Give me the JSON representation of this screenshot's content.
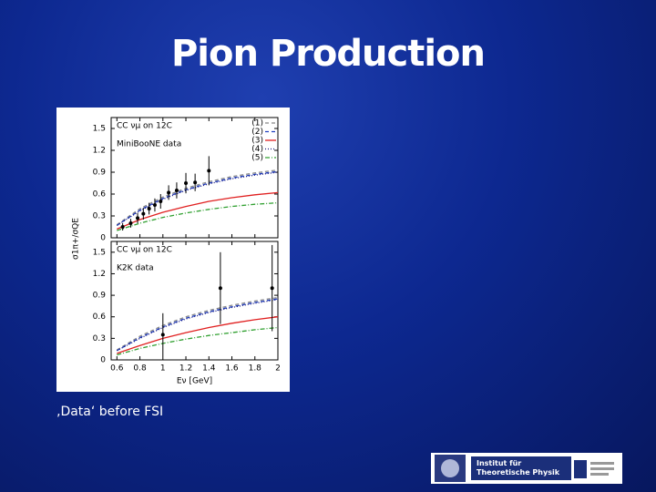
{
  "title": "Pion Production",
  "caption": "‚Data‘ before FSI",
  "logo": {
    "institute": "Institut für Theoretische Physik"
  },
  "chart_data": [
    {
      "type": "line",
      "ylabel": "σ1π+/σQE",
      "annotation": "CC νμ on 12C",
      "xlim": [
        0.55,
        2
      ],
      "xticks": [
        0.6,
        0.8,
        1,
        1.2,
        1.4,
        1.6,
        1.8,
        2
      ],
      "ylim": [
        0,
        1.65
      ],
      "yticks": [
        0,
        0.3,
        0.6,
        0.9,
        1.2,
        1.5
      ],
      "x": [
        0.6,
        0.8,
        1.0,
        1.2,
        1.4,
        1.6,
        1.8,
        2.0
      ],
      "series": [
        {
          "name": "(1)",
          "color": "#888888",
          "style": "dashed",
          "values": [
            0.18,
            0.4,
            0.56,
            0.68,
            0.77,
            0.84,
            0.89,
            0.93
          ]
        },
        {
          "name": "(2)",
          "color": "#2040c0",
          "style": "dashed",
          "values": [
            0.17,
            0.38,
            0.54,
            0.66,
            0.75,
            0.82,
            0.87,
            0.91
          ]
        },
        {
          "name": "(3)",
          "color": "#e02020",
          "style": "solid",
          "values": [
            0.12,
            0.25,
            0.35,
            0.43,
            0.5,
            0.55,
            0.59,
            0.62
          ]
        },
        {
          "name": "(4)",
          "color": "#1a1a80",
          "style": "dotted",
          "values": [
            0.17,
            0.37,
            0.53,
            0.65,
            0.74,
            0.81,
            0.86,
            0.9
          ]
        },
        {
          "name": "(5)",
          "color": "#30a030",
          "style": "dashdot",
          "values": [
            0.1,
            0.2,
            0.28,
            0.34,
            0.39,
            0.43,
            0.46,
            0.48
          ]
        }
      ],
      "data": {
        "name": "MiniBooNE data",
        "color": "#000000",
        "x": [
          0.65,
          0.72,
          0.78,
          0.83,
          0.88,
          0.93,
          0.98,
          1.05,
          1.12,
          1.2,
          1.28,
          1.4
        ],
        "values": [
          0.15,
          0.2,
          0.27,
          0.33,
          0.4,
          0.45,
          0.5,
          0.62,
          0.65,
          0.75,
          0.76,
          0.92
        ],
        "errors": [
          0.05,
          0.06,
          0.07,
          0.08,
          0.08,
          0.09,
          0.1,
          0.1,
          0.11,
          0.14,
          0.12,
          0.2
        ]
      }
    },
    {
      "type": "line",
      "xlabel": "Eν [GeV]",
      "annotation": "CC νμ on 12C",
      "xlim": [
        0.55,
        2
      ],
      "xticks": [
        0.6,
        0.8,
        1,
        1.2,
        1.4,
        1.6,
        1.8,
        2
      ],
      "ylim": [
        0,
        1.65
      ],
      "yticks": [
        0,
        0.3,
        0.6,
        0.9,
        1.2,
        1.5
      ],
      "x": [
        0.6,
        0.8,
        1.0,
        1.2,
        1.4,
        1.6,
        1.8,
        2.0
      ],
      "series": [
        {
          "color": "#888888",
          "style": "dashed",
          "values": [
            0.14,
            0.33,
            0.48,
            0.6,
            0.69,
            0.76,
            0.82,
            0.87
          ]
        },
        {
          "color": "#2040c0",
          "style": "dashed",
          "values": [
            0.13,
            0.31,
            0.46,
            0.58,
            0.67,
            0.74,
            0.8,
            0.85
          ]
        },
        {
          "color": "#e02020",
          "style": "solid",
          "values": [
            0.09,
            0.2,
            0.3,
            0.38,
            0.45,
            0.51,
            0.56,
            0.6
          ]
        },
        {
          "color": "#1a1a80",
          "style": "dotted",
          "values": [
            0.13,
            0.3,
            0.45,
            0.57,
            0.66,
            0.73,
            0.79,
            0.84
          ]
        },
        {
          "color": "#30a030",
          "style": "dashdot",
          "values": [
            0.07,
            0.16,
            0.23,
            0.29,
            0.34,
            0.38,
            0.42,
            0.45
          ]
        }
      ],
      "data": {
        "name": "K2K data",
        "color": "#000000",
        "x": [
          1.0,
          1.5,
          1.95
        ],
        "values": [
          0.35,
          1.0,
          1.0
        ],
        "errors": [
          0.3,
          0.5,
          0.6
        ]
      }
    }
  ]
}
